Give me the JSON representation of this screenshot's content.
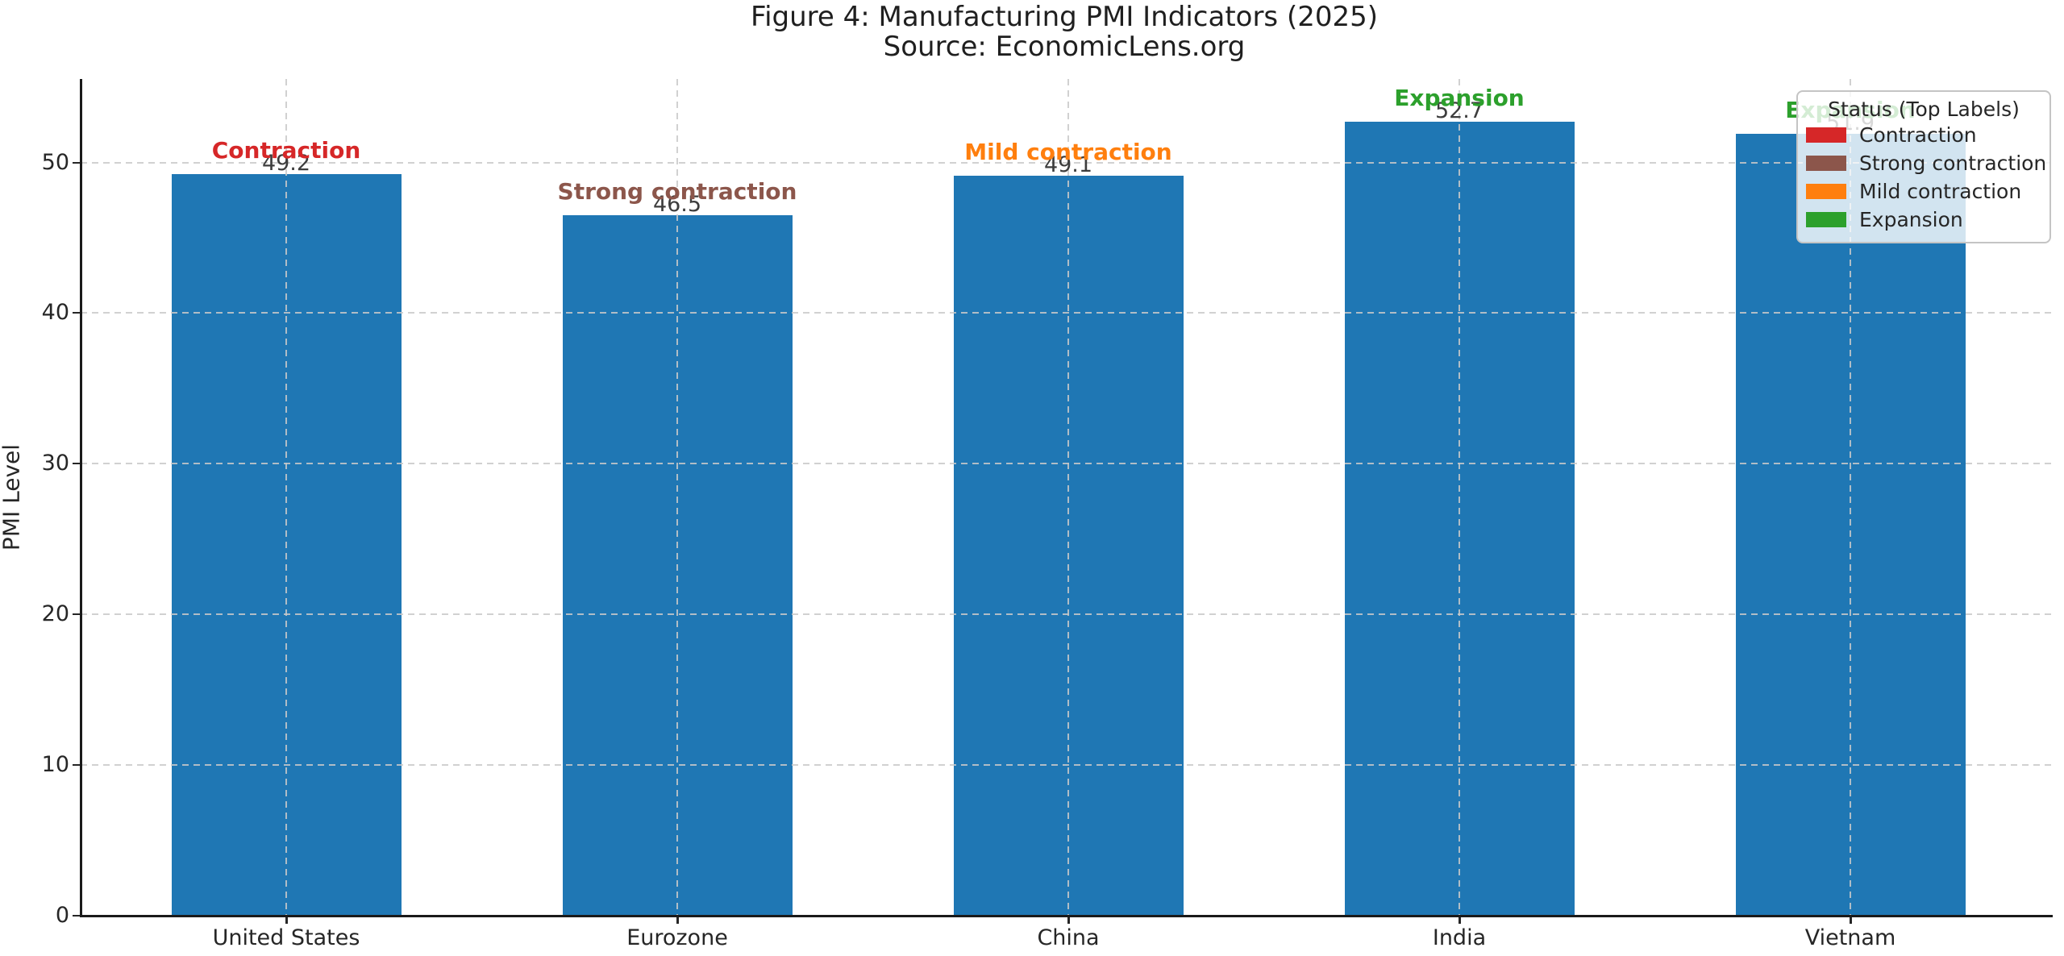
{
  "figure": {
    "title": "Figure 4: Manufacturing PMI Indicators (2025)",
    "subtitle": "Source: EconomicLens.org"
  },
  "chart_data": {
    "type": "bar",
    "title": "Figure 4: Manufacturing PMI Indicators (2025)",
    "subtitle": "Source: EconomicLens.org",
    "xlabel": "",
    "ylabel": "PMI Level",
    "categories": [
      "United States",
      "Eurozone",
      "China",
      "India",
      "Vietnam"
    ],
    "values": [
      49.2,
      46.5,
      49.1,
      52.7,
      51.9
    ],
    "value_labels": [
      "49.2",
      "46.5",
      "49.1",
      "52.7",
      "51.9"
    ],
    "status_labels": [
      "Contraction",
      "Strong contraction",
      "Mild contraction",
      "Expansion",
      "Expansion"
    ],
    "status_colors": [
      "#d62728",
      "#8c564b",
      "#ff7f0e",
      "#2ca02c",
      "#2ca02c"
    ],
    "bar_color": "#1f77b4",
    "value_label_color": "#3d3d3d",
    "yticks": [
      0,
      10,
      20,
      30,
      40,
      50
    ],
    "ylim": [
      0,
      55.5
    ],
    "grid": "dashed light-gray gridlines, horizontal at y ticks and vertical at bar centers, drawn over bars",
    "legend": {
      "title": "Status (Top Labels)",
      "position": "upper right",
      "entries": [
        {
          "label": "Contraction",
          "color": "#d62728"
        },
        {
          "label": "Strong contraction",
          "color": "#8c564b"
        },
        {
          "label": "Mild contraction",
          "color": "#ff7f0e"
        },
        {
          "label": "Expansion",
          "color": "#2ca02c"
        }
      ]
    }
  }
}
